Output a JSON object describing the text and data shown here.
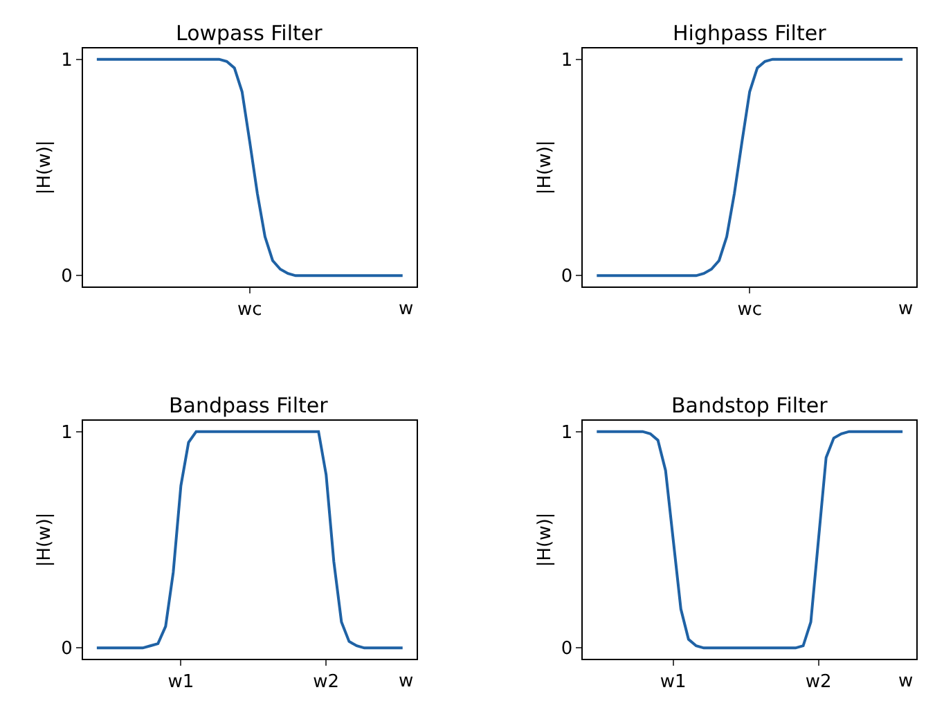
{
  "chart_data": [
    {
      "type": "line",
      "title": "Lowpass Filter",
      "xlabel": "w",
      "ylabel": "|H(w)|",
      "categories": [
        null,
        null,
        null,
        null,
        null,
        null,
        null,
        null,
        null,
        null,
        null,
        null,
        null,
        null,
        null,
        null,
        null,
        null,
        null,
        null,
        "wc",
        null,
        null,
        null,
        null,
        null,
        null,
        null,
        null,
        null,
        null,
        null,
        null,
        null,
        null,
        null,
        null,
        null,
        null,
        null,
        null
      ],
      "values": [
        1,
        1,
        1,
        1,
        1,
        1,
        1,
        1,
        1,
        1,
        1,
        1,
        1,
        1,
        1,
        1,
        1,
        0.99,
        0.96,
        0.85,
        0.62,
        0.38,
        0.18,
        0.07,
        0.03,
        0.01,
        0,
        0,
        0,
        0,
        0,
        0,
        0,
        0,
        0,
        0,
        0,
        0,
        0,
        0,
        0
      ],
      "color": "#1f62a5",
      "ylim": [
        -0.05,
        1.05
      ],
      "yticks": [
        0,
        1
      ]
    },
    {
      "type": "line",
      "title": "Highpass Filter",
      "xlabel": "w",
      "ylabel": "|H(w)|",
      "categories": [
        null,
        null,
        null,
        null,
        null,
        null,
        null,
        null,
        null,
        null,
        null,
        null,
        null,
        null,
        null,
        null,
        null,
        null,
        null,
        null,
        "wc",
        null,
        null,
        null,
        null,
        null,
        null,
        null,
        null,
        null,
        null,
        null,
        null,
        null,
        null,
        null,
        null,
        null,
        null,
        null,
        null
      ],
      "values": [
        0,
        0,
        0,
        0,
        0,
        0,
        0,
        0,
        0,
        0,
        0,
        0,
        0,
        0,
        0.01,
        0.03,
        0.07,
        0.18,
        0.38,
        0.62,
        0.85,
        0.96,
        0.99,
        1,
        1,
        1,
        1,
        1,
        1,
        1,
        1,
        1,
        1,
        1,
        1,
        1,
        1,
        1,
        1,
        1,
        1
      ],
      "color": "#1f62a5",
      "ylim": [
        -0.05,
        1.05
      ],
      "yticks": [
        0,
        1
      ]
    },
    {
      "type": "line",
      "title": "Bandpass Filter",
      "xlabel": "w",
      "ylabel": "|H(w)|",
      "categories": [
        null,
        null,
        null,
        null,
        null,
        null,
        null,
        null,
        null,
        null,
        null,
        "w1",
        null,
        null,
        null,
        null,
        null,
        null,
        null,
        null,
        null,
        null,
        null,
        null,
        null,
        null,
        null,
        null,
        null,
        null,
        "w2",
        null,
        null,
        null,
        null,
        null,
        null,
        null,
        null,
        null,
        null
      ],
      "values": [
        0,
        0,
        0,
        0,
        0,
        0,
        0,
        0.01,
        0.02,
        0.1,
        0.35,
        0.75,
        0.95,
        1,
        1,
        1,
        1,
        1,
        1,
        1,
        1,
        1,
        1,
        1,
        1,
        1,
        1,
        1,
        1,
        1,
        0.8,
        0.4,
        0.12,
        0.03,
        0.01,
        0,
        0,
        0,
        0,
        0,
        0
      ],
      "color": "#1f62a5",
      "ylim": [
        -0.05,
        1.05
      ],
      "yticks": [
        0,
        1
      ]
    },
    {
      "type": "line",
      "title": "Bandstop Filter",
      "xlabel": "w",
      "ylabel": "|H(w)|",
      "categories": [
        null,
        null,
        null,
        null,
        null,
        null,
        null,
        null,
        null,
        null,
        "w1",
        null,
        null,
        null,
        null,
        null,
        null,
        null,
        null,
        null,
        null,
        null,
        null,
        null,
        null,
        null,
        null,
        null,
        null,
        "w2",
        null,
        null,
        null,
        null,
        null,
        null,
        null,
        null,
        null,
        null,
        null
      ],
      "values": [
        1,
        1,
        1,
        1,
        1,
        1,
        1,
        0.99,
        0.96,
        0.82,
        0.5,
        0.18,
        0.04,
        0.01,
        0,
        0,
        0,
        0,
        0,
        0,
        0,
        0,
        0,
        0,
        0,
        0,
        0,
        0.01,
        0.12,
        0.5,
        0.88,
        0.97,
        0.99,
        1,
        1,
        1,
        1,
        1,
        1,
        1,
        1
      ],
      "color": "#1f62a5",
      "ylim": [
        -0.05,
        1.05
      ],
      "yticks": [
        0,
        1
      ]
    }
  ]
}
